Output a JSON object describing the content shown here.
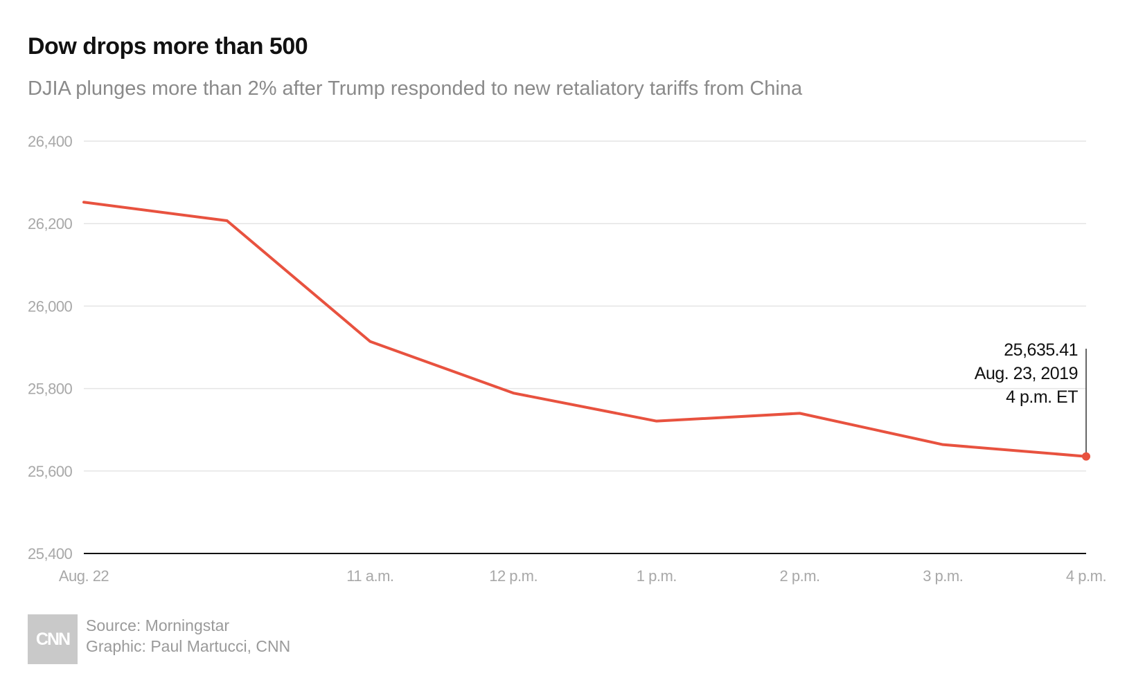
{
  "chart_data": {
    "type": "line",
    "title": "Dow drops more than 500",
    "subtitle": "DJIA plunges more than 2% after Trump responded to new retaliatory tariffs from China",
    "x_ticks": [
      "Aug. 22",
      "11 a.m.",
      "12 p.m.",
      "1 p.m.",
      "2 p.m.",
      "3 p.m.",
      "4 p.m."
    ],
    "y_ticks": [
      "26,400",
      "26,200",
      "26,000",
      "25,800",
      "25,600",
      "25,400"
    ],
    "ylim": [
      25400,
      26400
    ],
    "grid": true,
    "series": [
      {
        "points": [
          {
            "t": "Aug. 22",
            "y": 26252
          },
          {
            "t": "10 a.m.",
            "y": 26207
          },
          {
            "t": "11 a.m.",
            "y": 25914
          },
          {
            "t": "12 p.m.",
            "y": 25789
          },
          {
            "t": "1 p.m.",
            "y": 25721
          },
          {
            "t": "2 p.m.",
            "y": 25740
          },
          {
            "t": "3 p.m.",
            "y": 25664
          },
          {
            "t": "4 p.m.",
            "y": 25635.41
          }
        ]
      }
    ],
    "annotation": {
      "value": "25,635.41",
      "date": "Aug. 23, 2019",
      "time": "4 p.m. ET"
    },
    "line_color": "#e8523f"
  },
  "footer": {
    "logo": "CNN",
    "source": "Source: Morningstar",
    "graphic": "Graphic: Paul Martucci, CNN"
  }
}
